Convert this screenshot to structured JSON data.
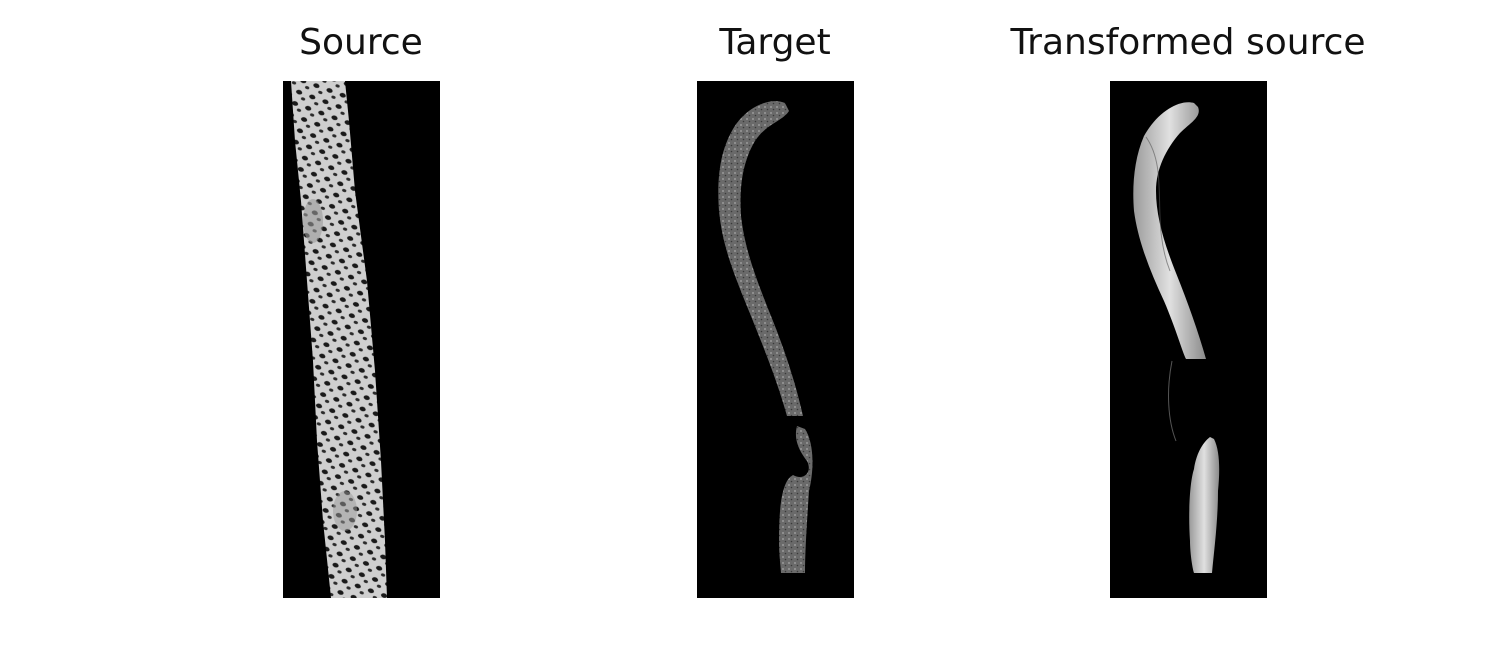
{
  "panels": [
    {
      "title": "Source"
    },
    {
      "title": "Target"
    },
    {
      "title": "Transformed source"
    }
  ],
  "colors": {
    "background": "#ffffff",
    "image_background": "#000000",
    "tissue_light": "#d8d8d8",
    "tissue_dark": "#6e6e6e"
  }
}
